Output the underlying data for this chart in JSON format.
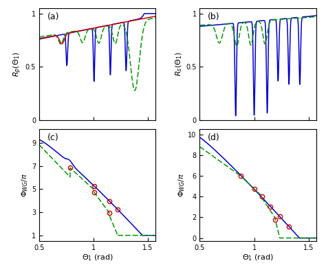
{
  "xlim": [
    0.5,
    1.5708
  ],
  "subplot_labels": [
    "(a)",
    "(b)",
    "(c)",
    "(d)"
  ],
  "xlabel": "$\\Theta_1$ (rad)",
  "ylabel_top_left": "$R_p(\\Theta_1)$",
  "ylabel_top_right": "$R_s(\\Theta_1)$",
  "ylabel_bot_left": "$\\Phi_{WG}/\\pi$",
  "ylabel_bot_right": "$\\Phi_{WG}/\\pi$",
  "xticks": [
    0.5,
    1.0,
    1.5
  ],
  "xtick_labels": [
    "0.5",
    "1",
    "1.5"
  ],
  "blue_color": "#0000cc",
  "green_color": "#009900",
  "red_color": "#cc0000",
  "background_color": "#ffffff"
}
